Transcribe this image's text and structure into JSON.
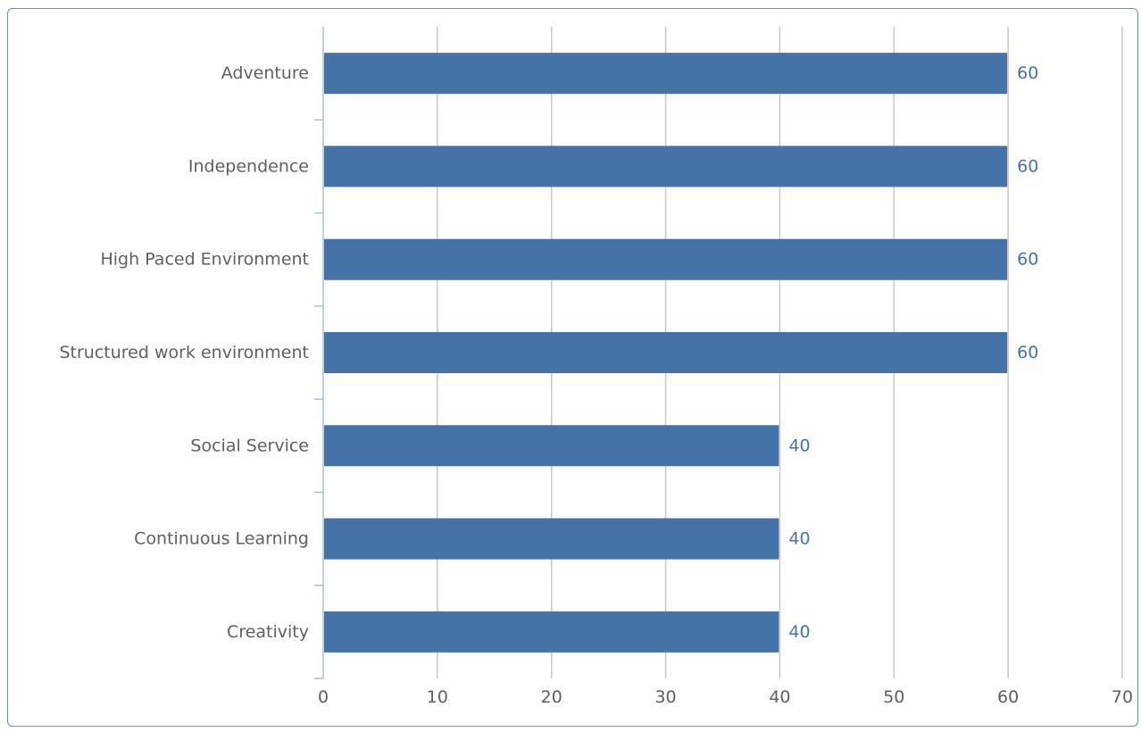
{
  "chart_data": {
    "type": "bar",
    "orientation": "horizontal",
    "title": "",
    "xlabel": "",
    "ylabel": "",
    "categories": [
      "Adventure",
      "Independence",
      "High Paced Environment",
      "Structured work environment",
      "Social Service",
      "Continuous Learning",
      "Creativity"
    ],
    "values": [
      60,
      60,
      60,
      60,
      40,
      40,
      40
    ],
    "xlim": [
      0,
      70
    ],
    "xticks": [
      0,
      10,
      20,
      30,
      40,
      50,
      60,
      70
    ],
    "grid": true,
    "legend": "none",
    "data_labels": true,
    "colors": {
      "bar": "#4572a7",
      "data_label": "#4572a7",
      "grid": "#c8c8c8",
      "axis": "#a8c0da",
      "text": "#5f5f5f",
      "frame_border": "#6a8fb0"
    }
  }
}
